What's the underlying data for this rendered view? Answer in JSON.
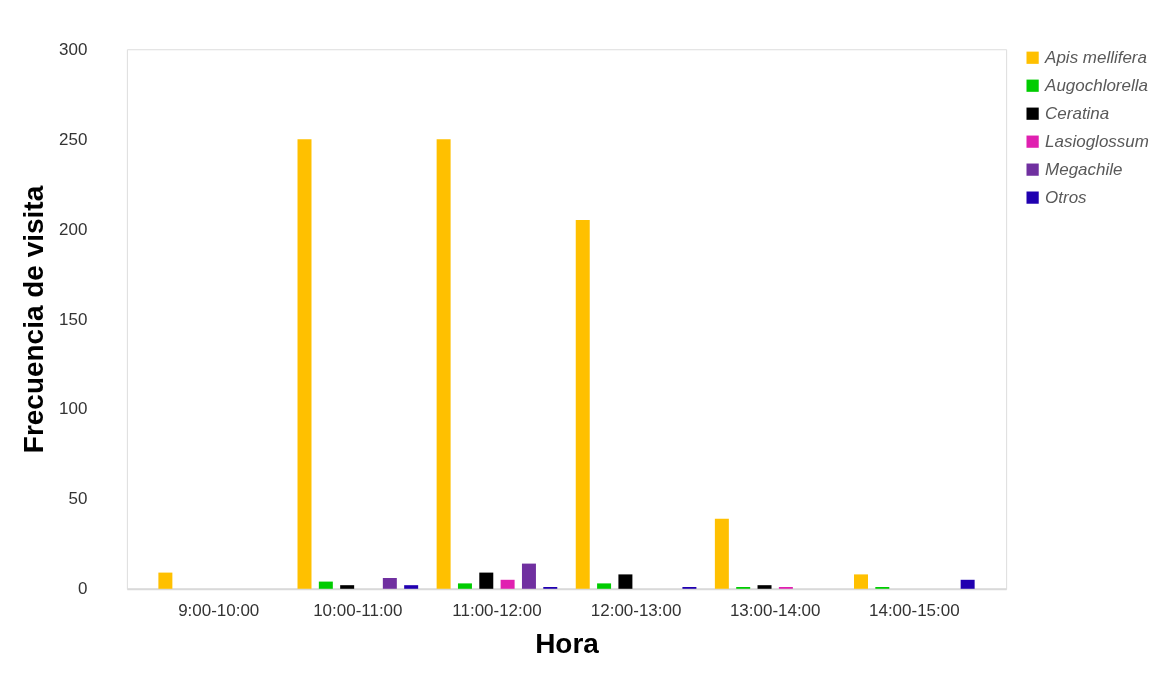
{
  "chart_data": {
    "type": "bar",
    "xlabel": "Hora",
    "ylabel": "Frecuencia de visita",
    "categories": [
      "9:00-10:00",
      "10:00-11:00",
      "11:00-12:00",
      "12:00-13:00",
      "13:00-14:00",
      "14:00-15:00"
    ],
    "series": [
      {
        "name": "Apis mellifera",
        "color": "#ffc000",
        "values": [
          9,
          250,
          250,
          205,
          39,
          8
        ]
      },
      {
        "name": "Augochlorella",
        "color": "#00cc00",
        "values": [
          0,
          4,
          3,
          3,
          1,
          1
        ]
      },
      {
        "name": "Ceratina",
        "color": "#000000",
        "values": [
          0,
          2,
          9,
          8,
          2,
          0
        ]
      },
      {
        "name": "Lasioglossum",
        "color": "#e020b0",
        "values": [
          0,
          0,
          5,
          0,
          1,
          0
        ]
      },
      {
        "name": "Megachile",
        "color": "#7030a0",
        "values": [
          0,
          6,
          14,
          0,
          0,
          0
        ]
      },
      {
        "name": "Otros",
        "color": "#2000b0",
        "values": [
          0,
          2,
          1,
          1,
          0,
          5
        ]
      }
    ],
    "ylim": [
      0,
      300
    ],
    "yticks": [
      0,
      50,
      100,
      150,
      200,
      250,
      300
    ],
    "grid": false,
    "legend": "right"
  }
}
